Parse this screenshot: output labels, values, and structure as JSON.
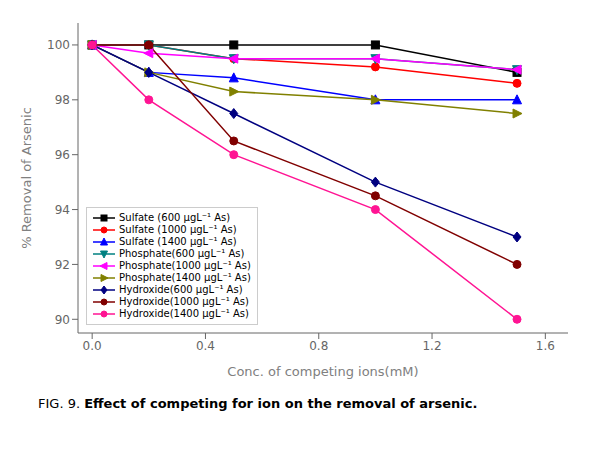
{
  "chart_data": {
    "type": "line",
    "xlabel": "Conc. of competing ions(mM)",
    "ylabel": "% Removal of Arsenic",
    "x": [
      0.0,
      0.2,
      0.5,
      1.0,
      1.5
    ],
    "series": [
      {
        "name": "Sulfate (600 μgL⁻¹ As)",
        "color": "#000000",
        "marker": "square",
        "values": [
          100.0,
          100.0,
          100.0,
          100.0,
          99.0
        ]
      },
      {
        "name": "Sulfate (1000 μgL⁻¹ As)",
        "color": "#ff0000",
        "marker": "circle",
        "values": [
          100.0,
          100.0,
          99.5,
          99.2,
          98.6
        ]
      },
      {
        "name": "Sulfate (1400 μgL⁻¹ As)",
        "color": "#0000ff",
        "marker": "triangle-up",
        "values": [
          100.0,
          99.0,
          98.8,
          98.0,
          98.0
        ]
      },
      {
        "name": "Phosphate(600 μgL⁻¹ As)",
        "color": "#008080",
        "marker": "triangle-down",
        "values": [
          100.0,
          100.0,
          99.5,
          99.5,
          99.1
        ]
      },
      {
        "name": "Phosphate(1000 μgL⁻¹ As)",
        "color": "#ff00ff",
        "marker": "triangle-left",
        "values": [
          100.0,
          99.7,
          99.5,
          99.5,
          99.1
        ]
      },
      {
        "name": "Phosphate(1400 μgL⁻¹ As)",
        "color": "#808000",
        "marker": "triangle-right",
        "values": [
          100.0,
          99.0,
          98.3,
          98.0,
          97.5
        ]
      },
      {
        "name": "Hydroxide(600 μgL⁻¹ As)",
        "color": "#000080",
        "marker": "diamond",
        "values": [
          100.0,
          99.0,
          97.5,
          95.0,
          93.0
        ]
      },
      {
        "name": "Hydroxide(1000 μgL⁻¹ As)",
        "color": "#800000",
        "marker": "circle",
        "values": [
          100.0,
          100.0,
          96.5,
          94.5,
          92.0
        ]
      },
      {
        "name": "Hydroxide(1400 μgL⁻¹ As)",
        "color": "#ff1493",
        "marker": "circle",
        "values": [
          100.0,
          98.0,
          96.0,
          94.0,
          90.0
        ]
      }
    ],
    "xlim": [
      -0.05,
      1.68
    ],
    "ylim": [
      89.5,
      100.8
    ],
    "xticks": [
      {
        "value": 0,
        "label": "0.0"
      },
      0.4,
      0.8,
      1.2,
      1.6
    ],
    "yticks": [
      90,
      92,
      94,
      96,
      98,
      100
    ],
    "grid": false,
    "legend": "lower left",
    "annotations": [
      "FIG. 9. ",
      "Effect of competing for ion on the removal of arsenic."
    ]
  }
}
